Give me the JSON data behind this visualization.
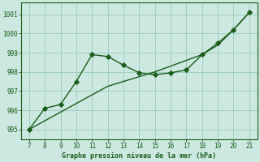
{
  "x": [
    7,
    8,
    9,
    10,
    11,
    12,
    13,
    14,
    15,
    16,
    17,
    18,
    19,
    20,
    21
  ],
  "y_trend": [
    995.0,
    995.45,
    995.9,
    996.35,
    996.8,
    997.25,
    997.5,
    997.75,
    998.0,
    998.3,
    998.6,
    998.9,
    999.4,
    1000.2,
    1001.1
  ],
  "y_actual": [
    995.0,
    996.1,
    996.3,
    997.5,
    998.9,
    998.8,
    998.35,
    997.95,
    997.85,
    997.95,
    998.1,
    998.9,
    999.5,
    1000.2,
    1001.1
  ],
  "line_color": "#1a5c1a",
  "bg_color": "#cce8e0",
  "grid_color": "#99ccbb",
  "xlabel": "Graphe pression niveau de la mer (hPa)",
  "ylim": [
    994.5,
    1001.6
  ],
  "xlim": [
    6.5,
    21.5
  ],
  "yticks": [
    995,
    996,
    997,
    998,
    999,
    1000,
    1001
  ],
  "xticks": [
    7,
    8,
    9,
    10,
    11,
    12,
    13,
    14,
    15,
    16,
    17,
    18,
    19,
    20,
    21
  ],
  "marker_size": 2.8,
  "linewidth": 1.0
}
